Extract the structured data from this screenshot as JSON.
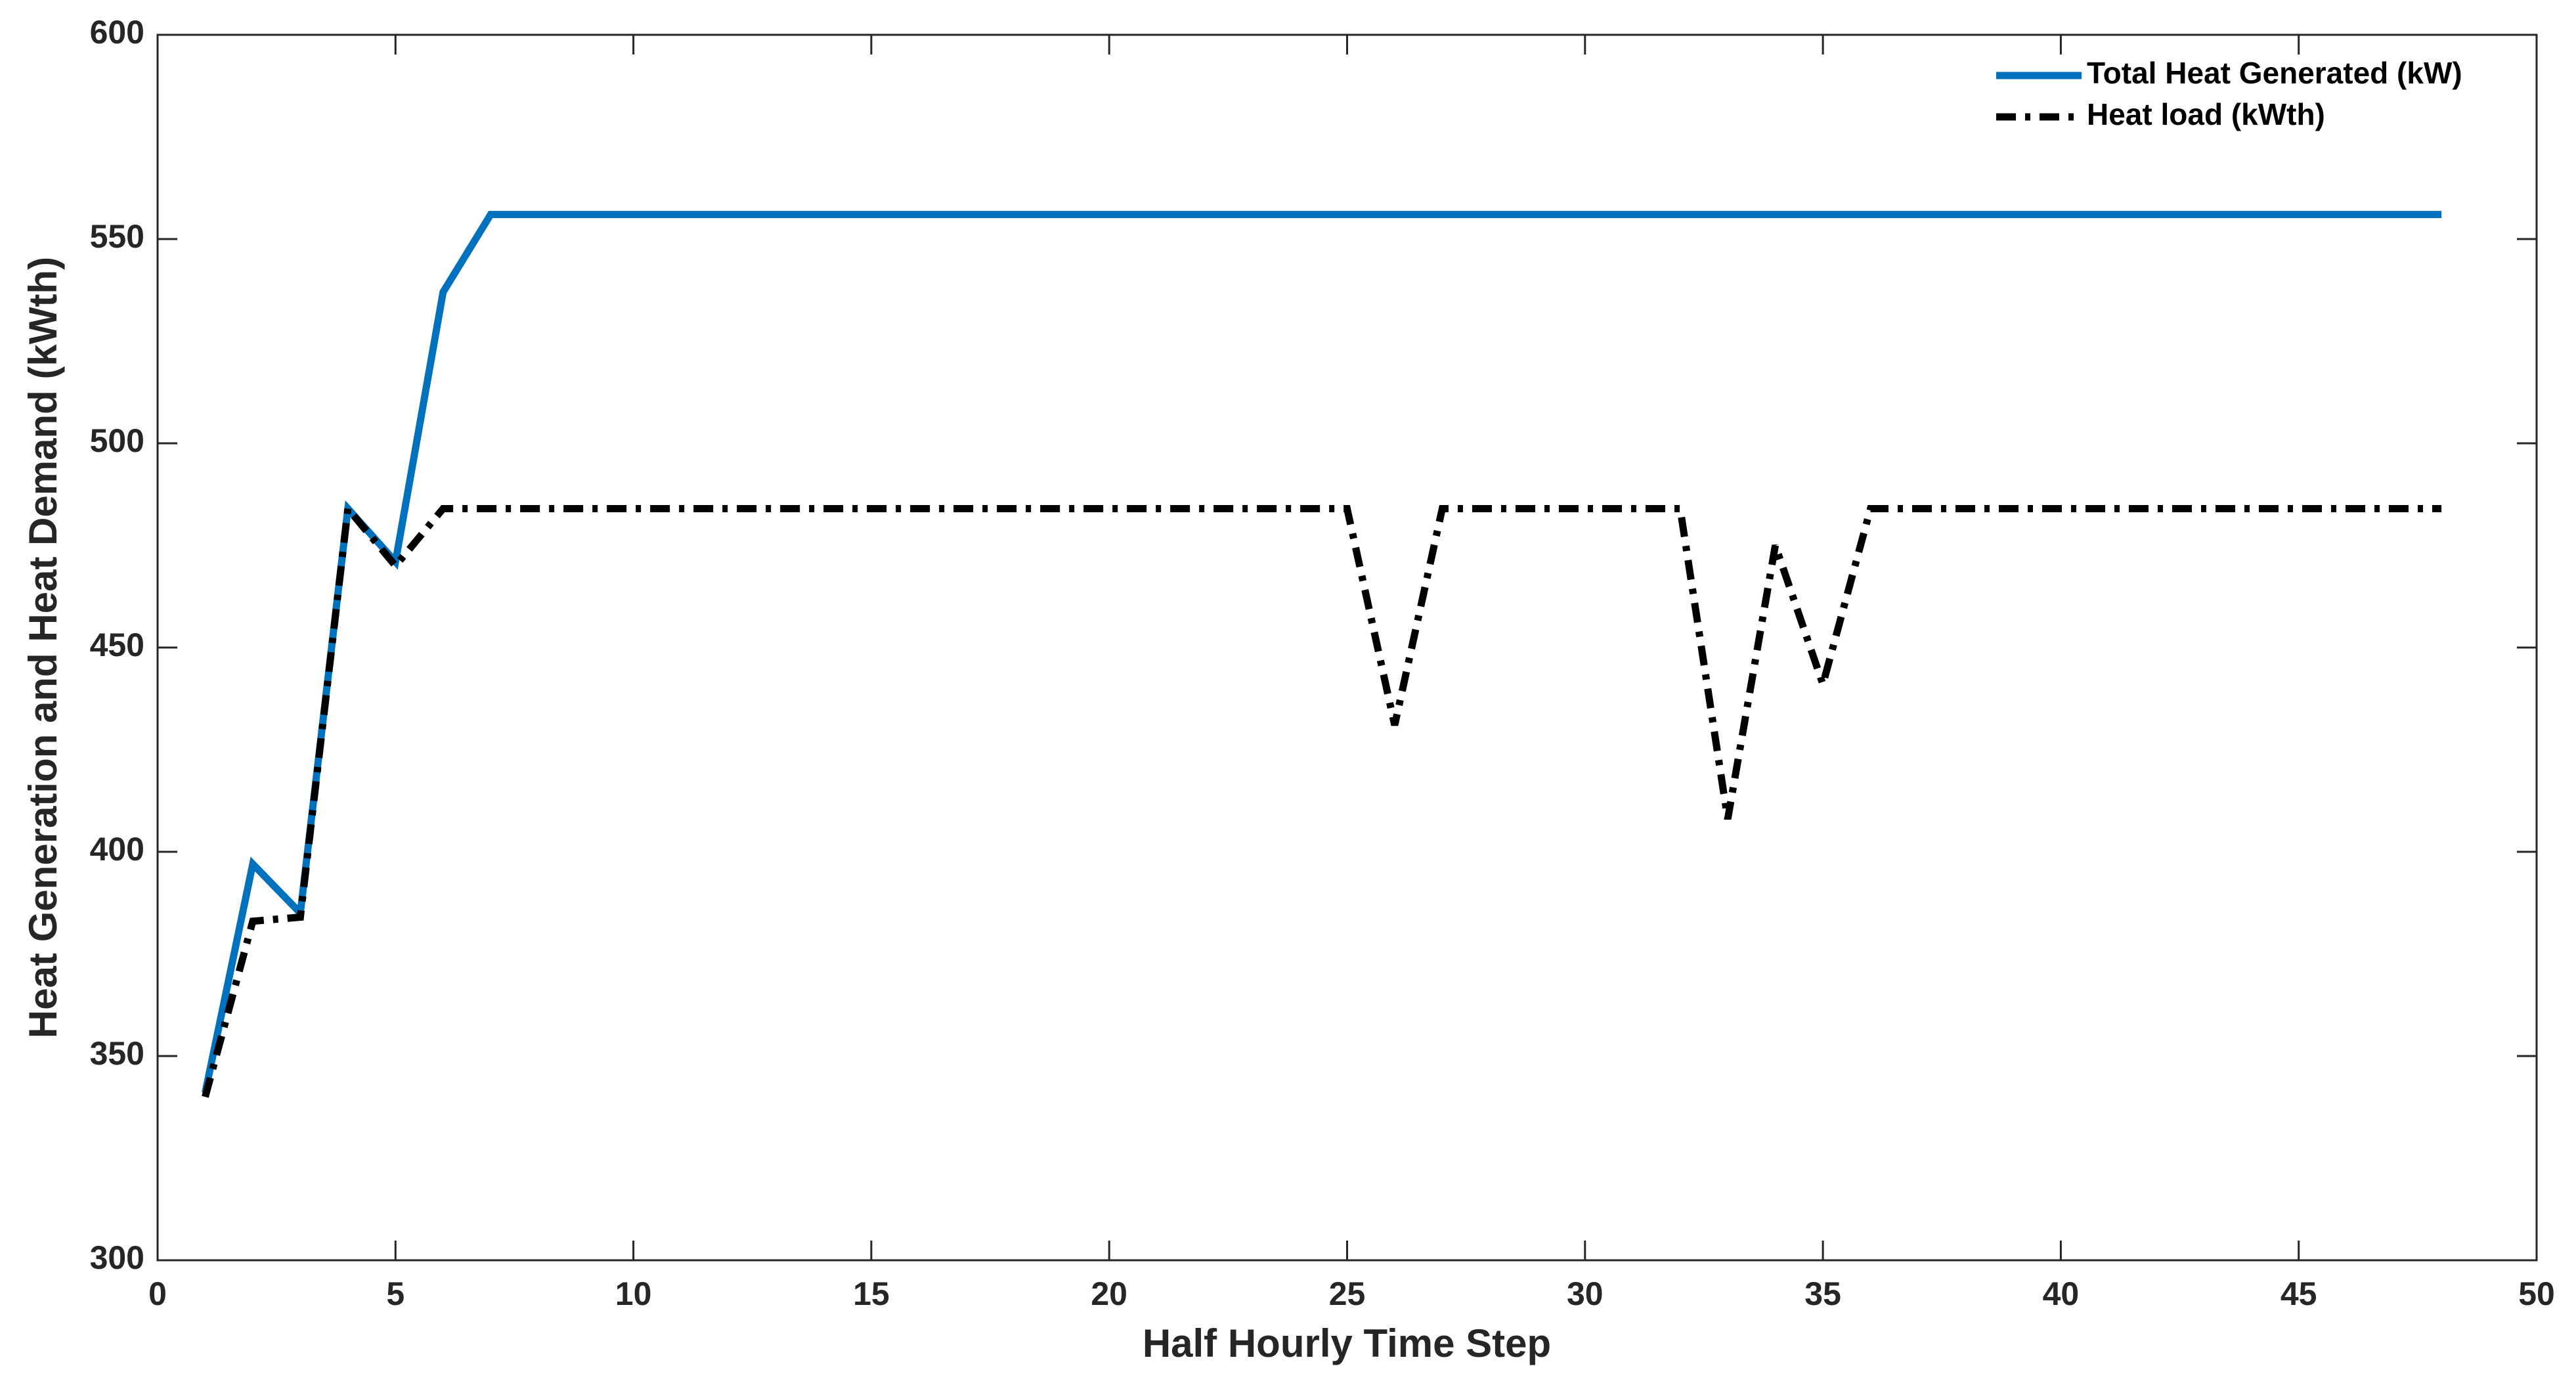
{
  "chart_data": {
    "type": "line",
    "x_label": "Half Hourly Time Step",
    "y_label": "Heat Generation and Heat Demand (kWth)",
    "x": [
      1,
      2,
      3,
      4,
      5,
      6,
      7,
      8,
      9,
      10,
      11,
      12,
      13,
      14,
      15,
      16,
      17,
      18,
      19,
      20,
      21,
      22,
      23,
      24,
      25,
      26,
      27,
      28,
      29,
      30,
      31,
      32,
      33,
      34,
      35,
      36,
      37,
      38,
      39,
      40,
      41,
      42,
      43,
      44,
      45,
      46,
      47,
      48
    ],
    "series": [
      {
        "name": "Total Heat Generated (kW)",
        "color": "#0072bd",
        "dash": "solid",
        "values": [
          341,
          397,
          385,
          484,
          471,
          537,
          556,
          556,
          556,
          556,
          556,
          556,
          556,
          556,
          556,
          556,
          556,
          556,
          556,
          556,
          556,
          556,
          556,
          556,
          556,
          556,
          556,
          556,
          556,
          556,
          556,
          556,
          556,
          556,
          556,
          556,
          556,
          556,
          556,
          556,
          556,
          556,
          556,
          556,
          556,
          556,
          556,
          556
        ]
      },
      {
        "name": "Heat load (kWth)",
        "color": "#000000",
        "dash": "dashdot",
        "values": [
          340,
          383,
          384,
          484,
          470,
          484,
          484,
          484,
          484,
          484,
          484,
          484,
          484,
          484,
          484,
          484,
          484,
          484,
          484,
          484,
          484,
          484,
          484,
          484,
          484,
          431,
          484,
          484,
          484,
          484,
          484,
          484,
          408,
          475,
          441,
          484,
          484,
          484,
          484,
          484,
          484,
          484,
          484,
          484,
          484,
          484,
          484,
          484
        ]
      }
    ],
    "xlim": [
      0,
      50
    ],
    "xticks": [
      0,
      5,
      10,
      15,
      20,
      25,
      30,
      35,
      40,
      45,
      50
    ],
    "ylim": [
      300,
      600
    ],
    "yticks": [
      300,
      350,
      400,
      450,
      500,
      550,
      600
    ],
    "grid": false,
    "legend": "upper right"
  }
}
